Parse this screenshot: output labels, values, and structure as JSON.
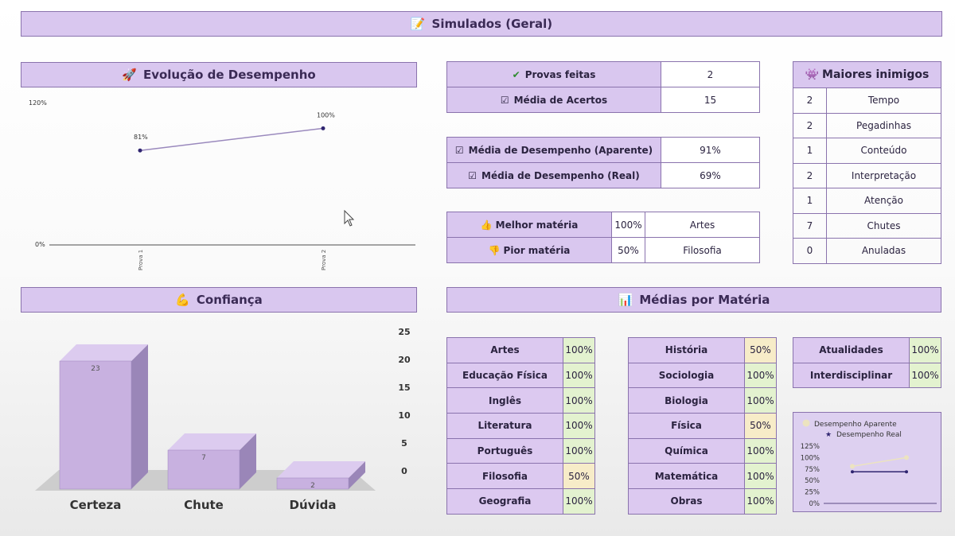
{
  "page_title": "Simulados (Geral)",
  "evolucao": {
    "title": "Evolução de Desempenho",
    "chart_data": {
      "type": "line",
      "categories": [
        "Prova 1",
        "Prova 2"
      ],
      "values": [
        81,
        100
      ],
      "value_labels": [
        "81%",
        "100%"
      ],
      "ylim": [
        0,
        120
      ],
      "ytick_labels": [
        "0%",
        "120%"
      ]
    }
  },
  "stats1": {
    "provas_label": "Provas feitas",
    "provas_value": "2",
    "acertos_label": "Média de Acertos",
    "acertos_value": "15"
  },
  "stats2": {
    "aparente_label": "Média de Desempenho (Aparente)",
    "aparente_value": "91%",
    "real_label": "Média de Desempenho (Real)",
    "real_value": "69%"
  },
  "stats3": {
    "melhor_label": "Melhor matéria",
    "melhor_pct": "100%",
    "melhor_materia": "Artes",
    "pior_label": "Pior matéria",
    "pior_pct": "50%",
    "pior_materia": "Filosofia"
  },
  "inimigos": {
    "title": "Maiores inimigos",
    "rows": [
      {
        "count": "2",
        "label": "Tempo"
      },
      {
        "count": "2",
        "label": "Pegadinhas"
      },
      {
        "count": "1",
        "label": "Conteúdo"
      },
      {
        "count": "2",
        "label": "Interpretação"
      },
      {
        "count": "1",
        "label": "Atenção"
      },
      {
        "count": "7",
        "label": "Chutes"
      },
      {
        "count": "0",
        "label": "Anuladas"
      }
    ]
  },
  "confianca": {
    "title": "Confiança",
    "chart_data": {
      "type": "bar",
      "categories": [
        "Certeza",
        "Chute",
        "Dúvida"
      ],
      "values": [
        23,
        7,
        2
      ],
      "value_labels": [
        "23",
        "7",
        "2"
      ],
      "ylim": [
        0,
        25
      ],
      "yticks": [
        "0",
        "5",
        "10",
        "15",
        "20",
        "25"
      ]
    }
  },
  "medias": {
    "title": "Médias por Matéria",
    "col1": [
      {
        "materia": "Artes",
        "pct": "100%"
      },
      {
        "materia": "Educação Física",
        "pct": "100%"
      },
      {
        "materia": "Inglês",
        "pct": "100%"
      },
      {
        "materia": "Literatura",
        "pct": "100%"
      },
      {
        "materia": "Português",
        "pct": "100%"
      },
      {
        "materia": "Filosofia",
        "pct": "50%"
      },
      {
        "materia": "Geografia",
        "pct": "100%"
      }
    ],
    "col2": [
      {
        "materia": "História",
        "pct": "50%"
      },
      {
        "materia": "Sociologia",
        "pct": "100%"
      },
      {
        "materia": "Biologia",
        "pct": "100%"
      },
      {
        "materia": "Física",
        "pct": "50%"
      },
      {
        "materia": "Química",
        "pct": "100%"
      },
      {
        "materia": "Matemática",
        "pct": "100%"
      },
      {
        "materia": "Obras",
        "pct": "100%"
      }
    ],
    "col3": [
      {
        "materia": "Atualidades",
        "pct": "100%"
      },
      {
        "materia": "Interdisciplinar",
        "pct": "100%"
      }
    ]
  },
  "mini_chart": {
    "chart_data": {
      "type": "line",
      "series": [
        {
          "name": "Desempenho Aparente",
          "values": [
            81,
            100
          ],
          "color": "#ece3c0"
        },
        {
          "name": "Desempenho Real",
          "values": [
            69,
            69
          ],
          "color": "#2f2570"
        }
      ],
      "ylim": [
        0,
        125
      ],
      "yticks": [
        "0%",
        "25%",
        "50%",
        "75%",
        "100%",
        "125%"
      ]
    }
  },
  "colors": {
    "header_bg": "#d9c7ef",
    "border": "#8a73ad",
    "good_cell": "#e3f2cf",
    "half_cell": "#f7ecc8",
    "bar_front": "#c8b1e0"
  }
}
